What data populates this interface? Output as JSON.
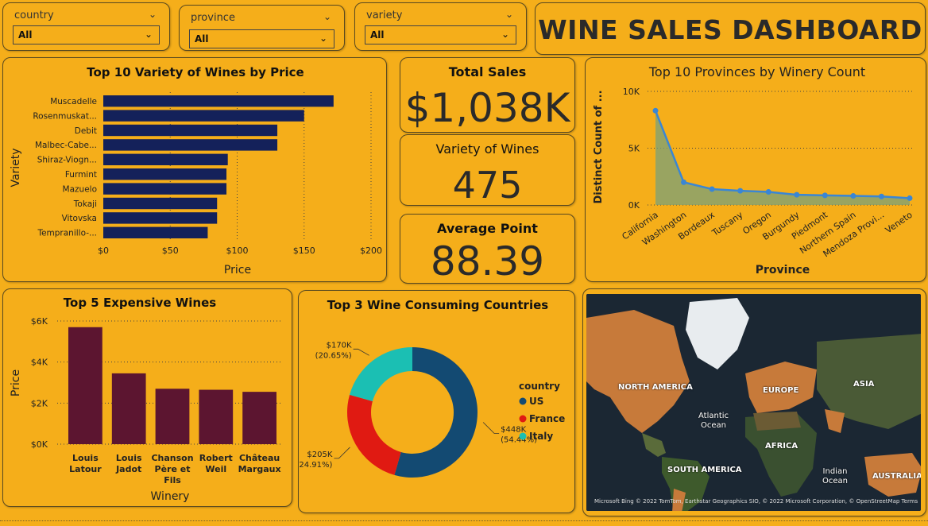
{
  "slicers": [
    {
      "label": "country",
      "value": "All"
    },
    {
      "label": "province",
      "value": "All"
    },
    {
      "label": "variety",
      "value": "All"
    }
  ],
  "dashboard_title": "WINE SALES DASHBOARD",
  "kpis": {
    "total_sales": {
      "label": "Total Sales",
      "value": "$1,038K"
    },
    "variety": {
      "label": "Variety of Wines",
      "value": "475"
    },
    "avg_point": {
      "label": "Average Point",
      "value": "88.39"
    }
  },
  "chart_data": [
    {
      "id": "variety_by_price",
      "type": "bar",
      "orientation": "horizontal",
      "title": "Top 10 Variety of Wines by Price",
      "xlabel": "Price",
      "ylabel": "Variety",
      "categories": [
        "Muscadelle",
        "Rosenmuskat...",
        "Debit",
        "Malbec-Cabe...",
        "Shiraz-Viogn...",
        "Furmint",
        "Mazuelo",
        "Tokaji",
        "Vitovska",
        "Tempranillo-..."
      ],
      "values": [
        172,
        150,
        130,
        130,
        93,
        92,
        92,
        85,
        85,
        78
      ],
      "xlim": [
        0,
        200
      ],
      "ticks": [
        "$0",
        "$50",
        "$100",
        "$150",
        "$200"
      ],
      "tick_values": [
        0,
        50,
        100,
        150,
        200
      ],
      "color": "#14215a"
    },
    {
      "id": "expensive_wines",
      "type": "bar",
      "title": "Top 5 Expensive Wines",
      "xlabel": "Winery",
      "ylabel": "Price",
      "categories": [
        "Louis Latour",
        "Louis Jadot",
        "Chanson Père et Fils",
        "Robert Weil",
        "Château Margaux"
      ],
      "values": [
        5700,
        3450,
        2700,
        2650,
        2550
      ],
      "ylim": [
        0,
        6000
      ],
      "ticks": [
        "$0K",
        "$2K",
        "$4K",
        "$6K"
      ],
      "tick_values": [
        0,
        2000,
        4000,
        6000
      ],
      "color": "#5c1530"
    },
    {
      "id": "consuming_countries",
      "type": "pie",
      "title": "Top 3 Wine Consuming Countries",
      "legend_title": "country",
      "legend_position": "right",
      "slices": [
        {
          "name": "US",
          "value": 448,
          "label": "$448K",
          "pct": "(54.44%)",
          "color": "#134a72"
        },
        {
          "name": "France",
          "value": 205,
          "label": "$205K",
          "pct": "(24.91%)",
          "color": "#e01a12"
        },
        {
          "name": "Italy",
          "value": 170,
          "label": "$170K",
          "pct": "(20.65%)",
          "color": "#1bbfb3"
        }
      ]
    },
    {
      "id": "provinces_winery",
      "type": "area",
      "title": "Top 10 Provinces by Winery Count",
      "xlabel": "Province",
      "ylabel": "Distinct Count of ...",
      "categories": [
        "California",
        "Washington",
        "Bordeaux",
        "Tuscany",
        "Oregon",
        "Burgundy",
        "Piedmont",
        "Northern Spain",
        "Mendoza Provi...",
        "Veneto"
      ],
      "values": [
        8300,
        2000,
        1400,
        1250,
        1150,
        900,
        850,
        800,
        750,
        600
      ],
      "ylim": [
        0,
        10000
      ],
      "ticks": [
        "0K",
        "5K",
        "10K"
      ],
      "tick_values": [
        0,
        5000,
        10000
      ],
      "color": "#3a86d4"
    }
  ],
  "map": {
    "labels": {
      "north_america": "NORTH AMERICA",
      "europe": "EUROPE",
      "asia": "ASIA",
      "atlantic": "Atlantic Ocean",
      "africa": "AFRICA",
      "south_america": "SOUTH AMERICA",
      "indian": "Indian Ocean",
      "australia": "AUSTRALIA"
    },
    "credits": "Microsoft Bing  © 2022 TomTom, Earthstar Geographics SIO, © 2022 Microsoft Corporation, © OpenStreetMap  Terms"
  }
}
